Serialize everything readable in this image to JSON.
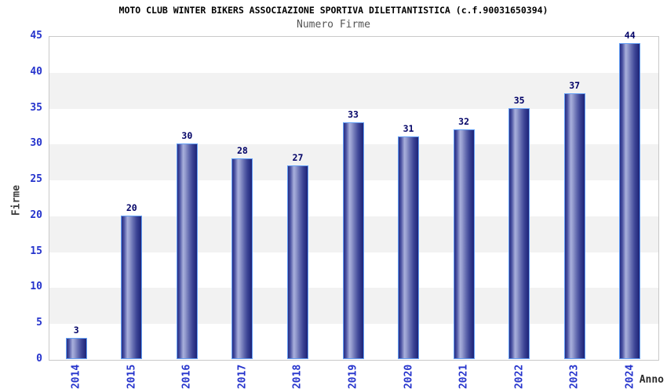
{
  "chart_data": {
    "type": "bar",
    "title": "MOTO CLUB WINTER BIKERS ASSOCIAZIONE SPORTIVA DILETTANTISTICA (c.f.90031650394)",
    "subtitle": "Numero Firme",
    "xlabel": "Anno",
    "ylabel": "Firme",
    "categories": [
      "2014",
      "2015",
      "2016",
      "2017",
      "2018",
      "2019",
      "2020",
      "2021",
      "2022",
      "2023",
      "2024"
    ],
    "values": [
      3,
      20,
      30,
      28,
      27,
      33,
      31,
      32,
      35,
      37,
      44
    ],
    "ylim": [
      0,
      45
    ],
    "ytick_step": 5,
    "legend": "none",
    "grid": "alternating horizontal bands every 5 units",
    "colors": {
      "bar_gradient_dark": "#1d2377",
      "bar_gradient_light": "#a9b0dc",
      "bar_border": "#64a0f6",
      "tick_label_blue": "#2533cc",
      "value_label_navy": "#000066",
      "axis_title_gray": "#3d3d3d",
      "band_gray": "#f2f2f2",
      "plot_border": "#c9c9c9",
      "title_black": "#000000",
      "subtitle_gray": "#555555",
      "background": "#ffffff"
    }
  }
}
